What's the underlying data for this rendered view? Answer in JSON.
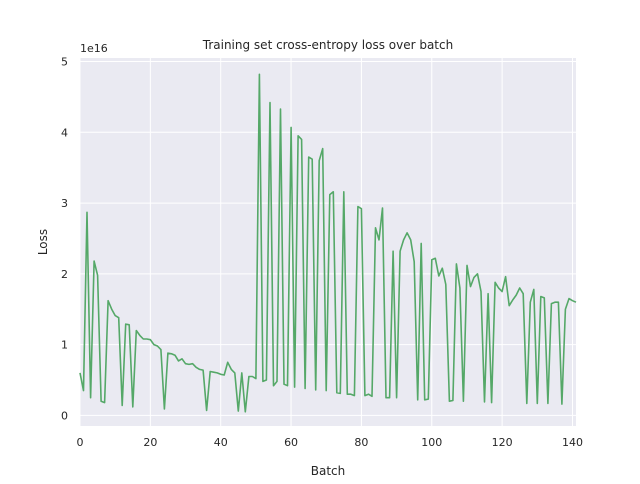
{
  "chart_data": {
    "type": "line",
    "title": "Training set cross-entropy loss over batch",
    "xlabel": "Batch",
    "ylabel": "Loss",
    "y_scale_label": "1e16",
    "xlim": [
      0,
      141
    ],
    "ylim": [
      -0.15,
      5.05
    ],
    "x_ticks": [
      0,
      20,
      40,
      60,
      80,
      100,
      120,
      140
    ],
    "y_ticks": [
      0,
      1,
      2,
      3,
      4,
      5
    ],
    "grid": true,
    "background": "#eaeaf2",
    "line_color": "#55a868",
    "series": [
      {
        "x": [
          0,
          1,
          2,
          3,
          4,
          5,
          6,
          7,
          8,
          9,
          10,
          11,
          12,
          13,
          14,
          15,
          16,
          17,
          18,
          19,
          20,
          21,
          22,
          23,
          24,
          25,
          26,
          27,
          28,
          29,
          30,
          31,
          32,
          33,
          34,
          35,
          36,
          37,
          38,
          39,
          40,
          41,
          42,
          43,
          44,
          45,
          46,
          47,
          48,
          49,
          50,
          51,
          52,
          53,
          54,
          55,
          56,
          57,
          58,
          59,
          60,
          61,
          62,
          63,
          64,
          65,
          66,
          67,
          68,
          69,
          70,
          71,
          72,
          73,
          74,
          75,
          76,
          77,
          78,
          79,
          80,
          81,
          82,
          83,
          84,
          85,
          86,
          87,
          88,
          89,
          90,
          91,
          92,
          93,
          94,
          95,
          96,
          97,
          98,
          99,
          100,
          101,
          102,
          103,
          104,
          105,
          106,
          107,
          108,
          109,
          110,
          111,
          112,
          113,
          114,
          115,
          116,
          117,
          118,
          119,
          120,
          121,
          122,
          123,
          124,
          125,
          126,
          127,
          128,
          129,
          130,
          131,
          132,
          133,
          134,
          135,
          136,
          137,
          138,
          139,
          140,
          141
        ],
        "values": [
          0.6,
          0.35,
          2.87,
          0.25,
          2.18,
          1.98,
          0.2,
          0.18,
          1.62,
          1.5,
          1.41,
          1.38,
          0.14,
          1.29,
          1.28,
          0.12,
          1.2,
          1.13,
          1.08,
          1.08,
          1.07,
          1.0,
          0.98,
          0.93,
          0.09,
          0.88,
          0.87,
          0.85,
          0.77,
          0.8,
          0.73,
          0.72,
          0.73,
          0.68,
          0.65,
          0.64,
          0.07,
          0.62,
          0.61,
          0.6,
          0.58,
          0.57,
          0.75,
          0.65,
          0.6,
          0.06,
          0.6,
          0.05,
          0.55,
          0.55,
          0.52,
          4.82,
          0.48,
          0.5,
          4.42,
          0.42,
          0.48,
          4.33,
          0.44,
          0.42,
          4.07,
          0.4,
          3.95,
          3.9,
          0.38,
          3.65,
          3.62,
          0.36,
          3.6,
          3.77,
          0.35,
          3.12,
          3.16,
          0.32,
          0.31,
          3.16,
          0.3,
          0.3,
          0.28,
          2.95,
          2.92,
          0.28,
          0.3,
          0.27,
          2.65,
          2.48,
          2.93,
          0.25,
          0.25,
          2.32,
          0.25,
          2.32,
          2.48,
          2.58,
          2.48,
          2.17,
          0.22,
          2.43,
          0.22,
          0.23,
          2.2,
          2.22,
          1.97,
          2.08,
          1.85,
          0.2,
          0.21,
          2.14,
          1.8,
          0.2,
          2.12,
          1.82,
          1.95,
          2.0,
          1.75,
          0.19,
          1.72,
          0.18,
          1.88,
          1.8,
          1.75,
          1.96,
          1.55,
          1.63,
          1.7,
          1.8,
          1.72,
          0.17,
          1.6,
          1.78,
          0.17,
          1.68,
          1.66,
          0.17,
          1.58,
          1.6,
          1.6,
          0.16,
          1.5,
          1.65,
          1.62,
          1.6
        ]
      }
    ]
  }
}
